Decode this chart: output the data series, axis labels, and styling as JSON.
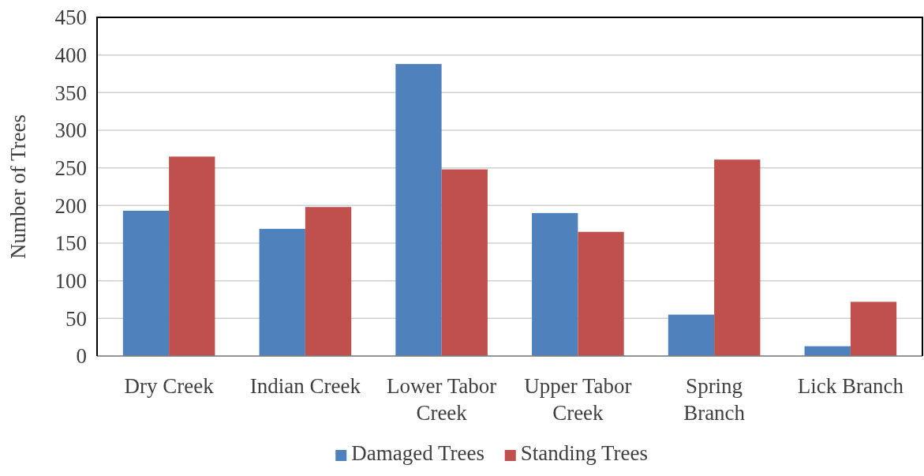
{
  "chart_data": {
    "type": "bar",
    "ylabel": "Number of Trees",
    "categories": [
      "Dry Creek",
      "Indian Creek",
      "Lower Tabor Creek",
      "Upper Tabor Creek",
      "Spring Branch",
      "Lick Branch"
    ],
    "series": [
      {
        "name": "Damaged Trees",
        "color": "#4f81bd",
        "values": [
          193,
          169,
          388,
          190,
          55,
          13
        ]
      },
      {
        "name": "Standing Trees",
        "color": "#c0504d",
        "values": [
          265,
          198,
          248,
          165,
          261,
          72
        ]
      }
    ],
    "ylim": [
      0,
      450
    ],
    "yticks": [
      0,
      50,
      100,
      150,
      200,
      250,
      300,
      350,
      400,
      450
    ],
    "grid": "y",
    "legend": "bottom"
  }
}
